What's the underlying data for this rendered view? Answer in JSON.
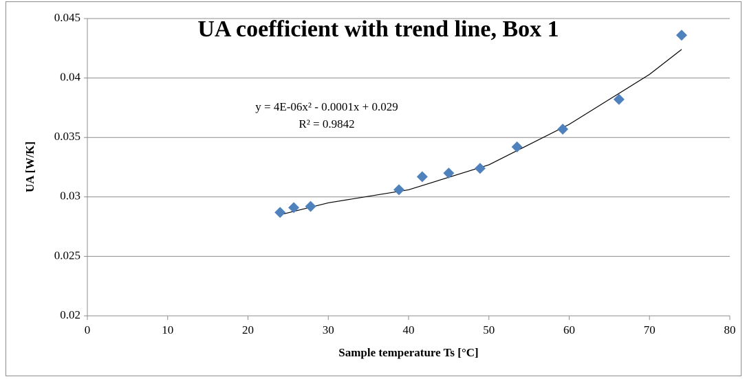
{
  "chart_data": {
    "type": "scatter",
    "title": "UA coefficient with trend line, Box 1",
    "xlabel": "Sample temperature Ts  [°C]",
    "ylabel": "UA [W/K]",
    "x": [
      24,
      25.7,
      27.8,
      38.8,
      41.7,
      45,
      48.9,
      53.5,
      59.2,
      66.2,
      74
    ],
    "values": [
      0.0287,
      0.0291,
      0.0292,
      0.0306,
      0.0317,
      0.032,
      0.0324,
      0.0342,
      0.0357,
      0.0382,
      0.0436
    ],
    "color": "#4f81bd",
    "trendline": {
      "x": [
        24,
        30,
        40,
        50,
        60,
        70,
        74
      ],
      "values": [
        0.0285,
        0.0295,
        0.0306,
        0.0327,
        0.0361,
        0.0403,
        0.0424
      ],
      "color": "#000000"
    },
    "annotations": [
      "y = 4E-06x² - 0.0001x + 0.029",
      "R² = 0.9842"
    ],
    "xlim": [
      0,
      80
    ],
    "xticks": [
      0,
      10,
      20,
      30,
      40,
      50,
      60,
      70,
      80
    ],
    "ylim": [
      0.02,
      0.045
    ],
    "yticks": [
      0.02,
      0.025,
      0.03,
      0.035,
      0.04,
      0.045
    ],
    "grid": true
  }
}
